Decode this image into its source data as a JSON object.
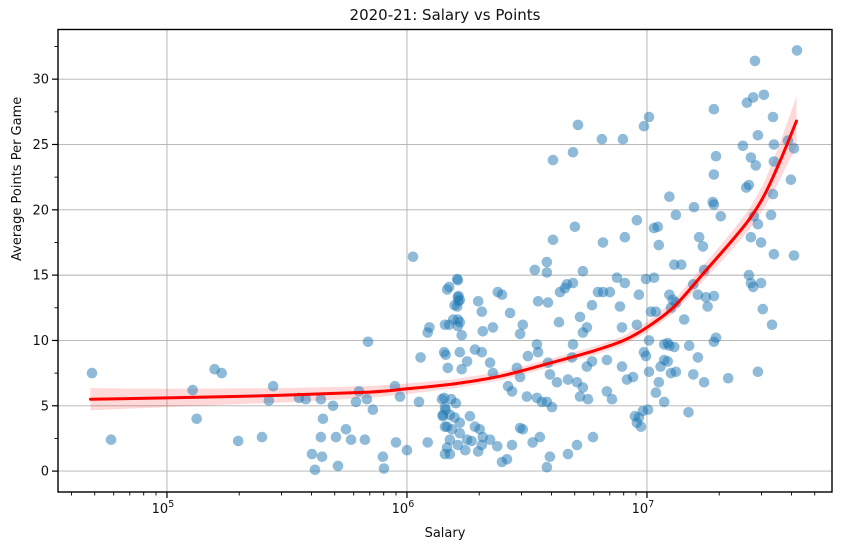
{
  "title": "2020-21: Salary vs Points",
  "axes": {
    "xlabel": "Salary",
    "ylabel": "Average Points Per Game",
    "x_tick_labels": [
      "10^5",
      "10^6",
      "10^7"
    ],
    "y_tick_labels": [
      "0",
      "5",
      "10",
      "15",
      "20",
      "25",
      "30"
    ]
  },
  "chart_data": {
    "type": "scatter",
    "title": "2020-21: Salary vs Points",
    "xlabel": "Salary",
    "ylabel": "Average Points Per Game",
    "x_scale": "log",
    "xlim_log10": [
      4.546,
      7.771
    ],
    "ylim": [
      -1.6,
      33.8
    ],
    "x_major_ticks": [
      100000,
      1000000,
      10000000
    ],
    "y_major_ticks": [
      0,
      5,
      10,
      15,
      20,
      25,
      30
    ],
    "grid": true,
    "legend": "none",
    "marker_radius": 5.3,
    "colors": {
      "scatter": "#1f77b4",
      "scatter_alpha": 0.5,
      "trend_line": "#ff0000",
      "band_alpha": 0.15,
      "grid": "#b0b0b0",
      "spine": "#000000"
    },
    "trend_line": [
      [
        48000,
        5.5
      ],
      [
        100000,
        5.6
      ],
      [
        300000,
        5.8
      ],
      [
        700000,
        6.05
      ],
      [
        1000000,
        6.3
      ],
      [
        1600000,
        6.7
      ],
      [
        2500000,
        7.3
      ],
      [
        4000000,
        8.3
      ],
      [
        6000000,
        9.2
      ],
      [
        8000000,
        10.0
      ],
      [
        10000000,
        11.0
      ],
      [
        13000000,
        12.6
      ],
      [
        17500000,
        15.3
      ],
      [
        23000000,
        17.8
      ],
      [
        27000000,
        19.4
      ],
      [
        31000000,
        21.2
      ],
      [
        36000000,
        23.8
      ],
      [
        42000000,
        26.8
      ]
    ],
    "trend_band_halfwidth": [
      0.85,
      0.7,
      0.55,
      0.45,
      0.4,
      0.35,
      0.32,
      0.32,
      0.33,
      0.35,
      0.4,
      0.5,
      0.6,
      0.7,
      0.8,
      1.0,
      1.4,
      1.9
    ],
    "points": [
      [
        48700,
        7.5
      ],
      [
        58500,
        2.4
      ],
      [
        128000,
        6.2
      ],
      [
        158000,
        7.8
      ],
      [
        169000,
        7.5
      ],
      [
        133000,
        4.0
      ],
      [
        198000,
        2.3
      ],
      [
        249000,
        2.6
      ],
      [
        277000,
        6.5
      ],
      [
        266000,
        5.4
      ],
      [
        355000,
        5.6
      ],
      [
        379000,
        5.5
      ],
      [
        438000,
        5.5
      ],
      [
        492000,
        5.0
      ],
      [
        613000,
        5.3
      ],
      [
        631000,
        6.1
      ],
      [
        681000,
        5.5
      ],
      [
        721000,
        4.7
      ],
      [
        891000,
        6.5
      ],
      [
        935000,
        5.7
      ],
      [
        688000,
        9.9
      ],
      [
        447000,
        4.0
      ],
      [
        438000,
        2.6
      ],
      [
        506000,
        2.6
      ],
      [
        557000,
        3.2
      ],
      [
        585000,
        2.4
      ],
      [
        668000,
        2.4
      ],
      [
        402000,
        1.3
      ],
      [
        443000,
        1.1
      ],
      [
        516000,
        0.4
      ],
      [
        414000,
        0.1
      ],
      [
        794000,
        1.1
      ],
      [
        802000,
        0.2
      ],
      [
        900000,
        2.2
      ],
      [
        1122000,
        5.3
      ],
      [
        1140000,
        8.7
      ],
      [
        1220000,
        10.6
      ],
      [
        1430000,
        9.1
      ],
      [
        1450000,
        4.7
      ],
      [
        1410000,
        4.3
      ],
      [
        1440000,
        3.4
      ],
      [
        1440000,
        1.3
      ],
      [
        1000000,
        1.6
      ],
      [
        1220000,
        2.2
      ],
      [
        1060000,
        16.4
      ],
      [
        1240000,
        11.0
      ],
      [
        1400000,
        5.5
      ],
      [
        1430000,
        5.6
      ],
      [
        1530000,
        5.5
      ],
      [
        1600000,
        5.2
      ],
      [
        1440000,
        4.9
      ],
      [
        1410000,
        4.2
      ],
      [
        1510000,
        4.3
      ],
      [
        1580000,
        4.1
      ],
      [
        1470000,
        3.4
      ],
      [
        1540000,
        3.2
      ],
      [
        1660000,
        3.7
      ],
      [
        1660000,
        2.9
      ],
      [
        1510000,
        2.4
      ],
      [
        1630000,
        2.0
      ],
      [
        1780000,
        2.4
      ],
      [
        1470000,
        1.8
      ],
      [
        1510000,
        1.3
      ],
      [
        1750000,
        1.6
      ],
      [
        1830000,
        4.2
      ],
      [
        1860000,
        2.3
      ],
      [
        1920000,
        3.4
      ],
      [
        2010000,
        3.2
      ],
      [
        2070000,
        2.6
      ],
      [
        2050000,
        2.0
      ],
      [
        2220000,
        2.4
      ],
      [
        1980000,
        1.5
      ],
      [
        1450000,
        8.9
      ],
      [
        1660000,
        9.1
      ],
      [
        1920000,
        9.3
      ],
      [
        2050000,
        9.1
      ],
      [
        1780000,
        8.4
      ],
      [
        1690000,
        7.8
      ],
      [
        1480000,
        7.9
      ],
      [
        2220000,
        8.3
      ],
      [
        2280000,
        7.5
      ],
      [
        1690000,
        10.4
      ],
      [
        1620000,
        14.7
      ],
      [
        1630000,
        13.3
      ],
      [
        1470000,
        13.9
      ],
      [
        1660000,
        13.1
      ],
      [
        1580000,
        12.7
      ],
      [
        1980000,
        13.0
      ],
      [
        2050000,
        12.2
      ],
      [
        1500000,
        14.1
      ],
      [
        1630000,
        14.6
      ],
      [
        1640000,
        13.4
      ],
      [
        1640000,
        13.0
      ],
      [
        1620000,
        12.6
      ],
      [
        1630000,
        11.6
      ],
      [
        1500000,
        11.2
      ],
      [
        1630000,
        11.1
      ],
      [
        1660000,
        11.4
      ],
      [
        1560000,
        11.6
      ],
      [
        1440000,
        11.2
      ],
      [
        2390000,
        13.7
      ],
      [
        2490000,
        13.5
      ],
      [
        2690000,
        12.1
      ],
      [
        3520000,
        13.0
      ],
      [
        3870000,
        12.9
      ],
      [
        2870000,
        7.9
      ],
      [
        2960000,
        7.2
      ],
      [
        3190000,
        8.8
      ],
      [
        3480000,
        9.7
      ],
      [
        3520000,
        9.1
      ],
      [
        3870000,
        8.3
      ],
      [
        3940000,
        7.4
      ],
      [
        2640000,
        6.5
      ],
      [
        2740000,
        6.1
      ],
      [
        3160000,
        5.7
      ],
      [
        3480000,
        5.6
      ],
      [
        3650000,
        5.3
      ],
      [
        3830000,
        5.3
      ],
      [
        2960000,
        10.5
      ],
      [
        2960000,
        3.3
      ],
      [
        3040000,
        3.2
      ],
      [
        3580000,
        2.6
      ],
      [
        2490000,
        0.7
      ],
      [
        2610000,
        0.9
      ],
      [
        3830000,
        0.3
      ],
      [
        3940000,
        1.1
      ],
      [
        2380000,
        1.9
      ],
      [
        2740000,
        2.0
      ],
      [
        3340000,
        2.2
      ],
      [
        3040000,
        11.2
      ],
      [
        2280000,
        11.0
      ],
      [
        2070000,
        10.7
      ],
      [
        3410000,
        15.4
      ],
      [
        3830000,
        16.0
      ],
      [
        3830000,
        15.2
      ],
      [
        4060000,
        17.7
      ],
      [
        4060000,
        23.8
      ],
      [
        4020000,
        4.9
      ],
      [
        4220000,
        6.8
      ],
      [
        4690000,
        7.0
      ],
      [
        5110000,
        6.8
      ],
      [
        5410000,
        6.4
      ],
      [
        5260000,
        5.7
      ],
      [
        5680000,
        5.5
      ],
      [
        6810000,
        6.1
      ],
      [
        7150000,
        5.5
      ],
      [
        8260000,
        7.0
      ],
      [
        8750000,
        7.2
      ],
      [
        6810000,
        8.5
      ],
      [
        7870000,
        8.0
      ],
      [
        5620000,
        8.0
      ],
      [
        5900000,
        8.4
      ],
      [
        4920000,
        9.7
      ],
      [
        4870000,
        8.7
      ],
      [
        5410000,
        10.6
      ],
      [
        4690000,
        1.3
      ],
      [
        5960000,
        2.6
      ],
      [
        5110000,
        2.0
      ],
      [
        8910000,
        4.2
      ],
      [
        9080000,
        3.7
      ],
      [
        4340000,
        13.7
      ],
      [
        4550000,
        14.0
      ],
      [
        4640000,
        14.3
      ],
      [
        4920000,
        14.4
      ],
      [
        5900000,
        12.7
      ],
      [
        6250000,
        13.7
      ],
      [
        6560000,
        13.7
      ],
      [
        7010000,
        13.7
      ],
      [
        7720000,
        12.6
      ],
      [
        9080000,
        11.2
      ],
      [
        7870000,
        11.0
      ],
      [
        4300000,
        11.4
      ],
      [
        5260000,
        11.8
      ],
      [
        5620000,
        11.0
      ],
      [
        5010000,
        18.7
      ],
      [
        6560000,
        17.5
      ],
      [
        8090000,
        17.9
      ],
      [
        5410000,
        15.3
      ],
      [
        7500000,
        14.8
      ],
      [
        8090000,
        14.4
      ],
      [
        9080000,
        19.2
      ],
      [
        5160000,
        26.5
      ],
      [
        4920000,
        24.4
      ],
      [
        6490000,
        25.4
      ],
      [
        7940000,
        25.4
      ],
      [
        9720000,
        9.1
      ],
      [
        9910000,
        8.8
      ],
      [
        10200000,
        7.6
      ],
      [
        11200000,
        6.8
      ],
      [
        11400000,
        8.0
      ],
      [
        11800000,
        8.5
      ],
      [
        12200000,
        8.4
      ],
      [
        12600000,
        7.5
      ],
      [
        13200000,
        7.6
      ],
      [
        15600000,
        7.4
      ],
      [
        17300000,
        6.8
      ],
      [
        16300000,
        8.7
      ],
      [
        21800000,
        7.1
      ],
      [
        29000000,
        7.6
      ],
      [
        10900000,
        6.0
      ],
      [
        11800000,
        5.3
      ],
      [
        9620000,
        4.6
      ],
      [
        10100000,
        4.7
      ],
      [
        9260000,
        4.1
      ],
      [
        9440000,
        3.4
      ],
      [
        14900000,
        4.5
      ],
      [
        11800000,
        9.7
      ],
      [
        12400000,
        9.6
      ],
      [
        13000000,
        9.5
      ],
      [
        15000000,
        9.6
      ],
      [
        19000000,
        9.9
      ],
      [
        10200000,
        10.0
      ],
      [
        12200000,
        9.8
      ],
      [
        19400000,
        10.2
      ],
      [
        9260000,
        13.5
      ],
      [
        10400000,
        12.2
      ],
      [
        10900000,
        12.2
      ],
      [
        12400000,
        13.5
      ],
      [
        12800000,
        13.1
      ],
      [
        13200000,
        12.9
      ],
      [
        12600000,
        12.5
      ],
      [
        14300000,
        11.6
      ],
      [
        15600000,
        14.3
      ],
      [
        16300000,
        13.5
      ],
      [
        17600000,
        13.3
      ],
      [
        17900000,
        12.6
      ],
      [
        19000000,
        13.4
      ],
      [
        9910000,
        14.7
      ],
      [
        10700000,
        14.8
      ],
      [
        13000000,
        15.8
      ],
      [
        13900000,
        15.8
      ],
      [
        17300000,
        15.4
      ],
      [
        33200000,
        11.2
      ],
      [
        30400000,
        12.4
      ],
      [
        26600000,
        15.0
      ],
      [
        27100000,
        14.4
      ],
      [
        27700000,
        14.1
      ],
      [
        29900000,
        14.4
      ],
      [
        12400000,
        21.0
      ],
      [
        13200000,
        19.6
      ],
      [
        11100000,
        18.7
      ],
      [
        10700000,
        18.6
      ],
      [
        11200000,
        17.3
      ],
      [
        15700000,
        20.2
      ],
      [
        18800000,
        20.6
      ],
      [
        19000000,
        20.4
      ],
      [
        20300000,
        19.5
      ],
      [
        16500000,
        17.9
      ],
      [
        17100000,
        17.2
      ],
      [
        25900000,
        21.7
      ],
      [
        27900000,
        19.5
      ],
      [
        29000000,
        18.9
      ],
      [
        32900000,
        19.6
      ],
      [
        33500000,
        21.2
      ],
      [
        27100000,
        17.9
      ],
      [
        29900000,
        17.5
      ],
      [
        33800000,
        16.6
      ],
      [
        41000000,
        16.5
      ],
      [
        9720000,
        26.4
      ],
      [
        10200000,
        27.1
      ],
      [
        19000000,
        27.7
      ],
      [
        28200000,
        31.4
      ],
      [
        42200000,
        32.2
      ],
      [
        26100000,
        28.2
      ],
      [
        27700000,
        28.6
      ],
      [
        30700000,
        28.8
      ],
      [
        33500000,
        27.1
      ],
      [
        19400000,
        24.1
      ],
      [
        25100000,
        24.9
      ],
      [
        29000000,
        25.7
      ],
      [
        28400000,
        23.4
      ],
      [
        33800000,
        25.0
      ],
      [
        38700000,
        25.3
      ],
      [
        41000000,
        24.7
      ],
      [
        27100000,
        24.0
      ],
      [
        19000000,
        22.7
      ],
      [
        39800000,
        22.3
      ],
      [
        26600000,
        21.9
      ],
      [
        33800000,
        23.7
      ]
    ]
  }
}
